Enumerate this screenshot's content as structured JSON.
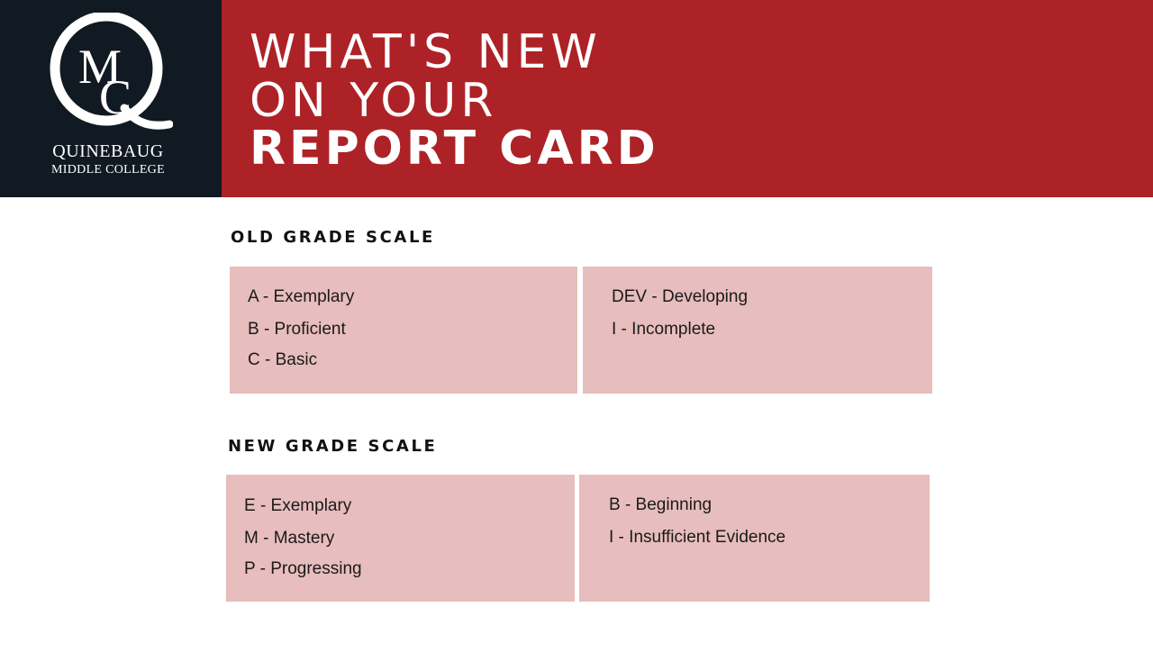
{
  "header": {
    "logo": {
      "monogram": "QMC",
      "name_line1": "QUINEBAUG",
      "name_line2": "MIDDLE COLLEGE"
    },
    "title_line1": "WHAT'S NEW",
    "title_line2": "ON YOUR",
    "title_line3": "REPORT CARD"
  },
  "old_scale": {
    "label": "OLD GRADE SCALE",
    "left_items": [
      "A - Exemplary",
      "B - Proficient",
      "C - Basic"
    ],
    "right_items": [
      "DEV - Developing",
      "I -  Incomplete"
    ]
  },
  "new_scale": {
    "label": "NEW GRADE SCALE",
    "left_items": [
      "E - Exemplary",
      "M - Mastery",
      "P - Progressing"
    ],
    "right_items": [
      "B - Beginning",
      "I -  Insufficient Evidence"
    ]
  },
  "colors": {
    "logo_background": "#111a22",
    "title_background": "#ad2226",
    "box_fill": "#e8bdbd"
  }
}
